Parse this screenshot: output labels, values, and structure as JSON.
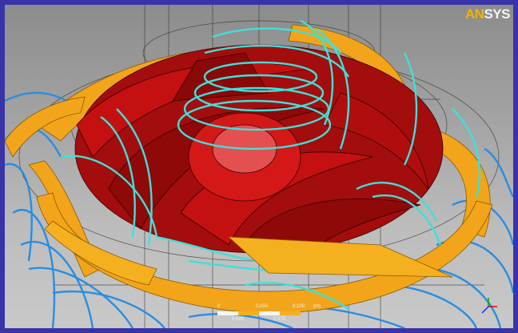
{
  "brand": {
    "prefix": "AN",
    "suffix": "SYS"
  },
  "scale_legend": {
    "ticks": [
      "0",
      "0.050",
      "0.100"
    ],
    "sub_ticks": [
      "0.025",
      "0.075"
    ],
    "unit": "(m)"
  },
  "colors": {
    "background_frame": "#3a33a8",
    "impeller": "#c41010",
    "diffuser": "#f2a51a",
    "streamline_inner": "#3fe0d8",
    "streamline_outer": "#2a8de0"
  }
}
